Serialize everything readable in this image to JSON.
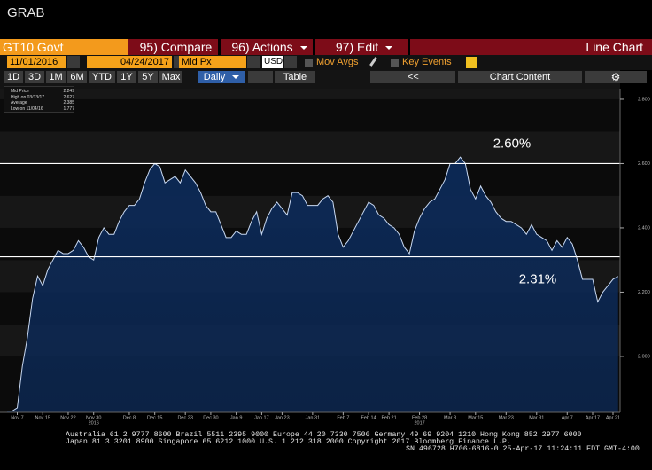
{
  "header": {
    "title": "GRAB"
  },
  "toolbar": {
    "security": "GT10 Govt",
    "compare": "95) Compare",
    "actions": "96) Actions",
    "edit": "97) Edit",
    "view": "Line Chart"
  },
  "controls": {
    "start_date": "11/01/2016",
    "end_date": "04/24/2017",
    "field": "Mid Px",
    "currency": "USD",
    "mov_avgs": "Mov Avgs",
    "key_events": "Key Events"
  },
  "periods": [
    "1D",
    "3D",
    "1M",
    "6M",
    "YTD",
    "1Y",
    "5Y",
    "Max"
  ],
  "frequency": "Daily",
  "table": "Table",
  "collapse": "<<",
  "chart_content": "Chart Content",
  "legend": {
    "rows": [
      [
        "Mid Price",
        2.249
      ],
      [
        "High on 03/13/17",
        2.627
      ],
      [
        "Average",
        2.385
      ],
      [
        "Low on 11/04/16",
        1.777
      ]
    ]
  },
  "chart_data": {
    "type": "area",
    "line_color": "#c9d9f2",
    "fill_color": "#0c2a58",
    "grid": true,
    "categories": [
      null,
      null,
      "Nov 7",
      null,
      null,
      null,
      null,
      "Nov 15",
      null,
      null,
      null,
      null,
      "Nov 22",
      null,
      null,
      null,
      null,
      "Nov 30",
      null,
      null,
      null,
      null,
      null,
      null,
      "Dec 8",
      null,
      null,
      null,
      null,
      "Dec 15",
      null,
      null,
      null,
      null,
      null,
      "Dec 23",
      null,
      null,
      null,
      null,
      "Dec 30",
      null,
      null,
      null,
      null,
      "Jan 9",
      null,
      null,
      null,
      null,
      "Jan 17",
      null,
      null,
      null,
      "Jan 23",
      null,
      null,
      null,
      null,
      null,
      "Jan 31",
      null,
      null,
      null,
      null,
      null,
      "Feb 7",
      null,
      null,
      null,
      null,
      "Feb 14",
      null,
      null,
      null,
      "Feb 21",
      null,
      null,
      null,
      null,
      null,
      "Feb 28",
      null,
      null,
      null,
      null,
      null,
      "Mar 8",
      null,
      null,
      null,
      null,
      "Mar 15",
      null,
      null,
      null,
      null,
      null,
      "Mar 23",
      null,
      null,
      null,
      null,
      null,
      "Mar 31",
      null,
      null,
      null,
      null,
      null,
      "Apr 7",
      null,
      null,
      null,
      null,
      "Apr 17",
      null,
      null,
      null,
      "Apr 21",
      null
    ],
    "values": [
      1.83,
      1.83,
      1.84,
      1.97,
      2.06,
      2.18,
      2.25,
      2.22,
      2.27,
      2.3,
      2.33,
      2.32,
      2.32,
      2.33,
      2.36,
      2.34,
      2.31,
      2.3,
      2.37,
      2.4,
      2.38,
      2.38,
      2.42,
      2.45,
      2.47,
      2.47,
      2.49,
      2.54,
      2.58,
      2.6,
      2.59,
      2.54,
      2.55,
      2.56,
      2.54,
      2.58,
      2.56,
      2.54,
      2.51,
      2.47,
      2.45,
      2.45,
      2.41,
      2.37,
      2.37,
      2.39,
      2.38,
      2.38,
      2.42,
      2.45,
      2.38,
      2.43,
      2.46,
      2.48,
      2.46,
      2.44,
      2.51,
      2.51,
      2.5,
      2.47,
      2.47,
      2.47,
      2.49,
      2.5,
      2.48,
      2.38,
      2.34,
      2.36,
      2.39,
      2.42,
      2.45,
      2.48,
      2.47,
      2.44,
      2.43,
      2.41,
      2.4,
      2.38,
      2.34,
      2.32,
      2.39,
      2.43,
      2.46,
      2.48,
      2.49,
      2.52,
      2.55,
      2.6,
      2.6,
      2.62,
      2.6,
      2.52,
      2.49,
      2.53,
      2.5,
      2.48,
      2.45,
      2.43,
      2.42,
      2.42,
      2.41,
      2.4,
      2.38,
      2.41,
      2.38,
      2.37,
      2.36,
      2.33,
      2.36,
      2.34,
      2.37,
      2.35,
      2.3,
      2.24,
      2.24,
      2.24,
      2.17,
      2.2,
      2.22,
      2.24,
      2.249
    ],
    "year_labels": [
      "2016",
      "2017"
    ],
    "ylim": [
      1.826,
      2.833
    ],
    "yticks": [
      {
        "value": 2.0,
        "label": "2.000"
      },
      {
        "value": 2.2,
        "label": "2.200"
      },
      {
        "value": 2.4,
        "label": "2.400"
      },
      {
        "value": 2.6,
        "label": "2.600"
      },
      {
        "value": 2.8,
        "label": "2.800"
      }
    ],
    "annotations": [
      {
        "value": 2.6,
        "label": "2.60%"
      },
      {
        "value": 2.31,
        "label": "2.31%"
      }
    ]
  },
  "footer": {
    "lines": [
      "Australia 61 2 9777 8600 Brazil 5511 2395 9000 Europe 44 20 7330 7500 Germany 49 69 9204 1210 Hong Kong 852 2977 6000",
      "Japan 81 3 3201 8900         Singapore 65 6212 1000         U.S. 1 212 318 2000             Copyright 2017 Bloomberg Finance L.P.",
      "SN 496728 H706-6816-0 25-Apr-17 11:24:11 EDT  GMT-4:00"
    ]
  }
}
